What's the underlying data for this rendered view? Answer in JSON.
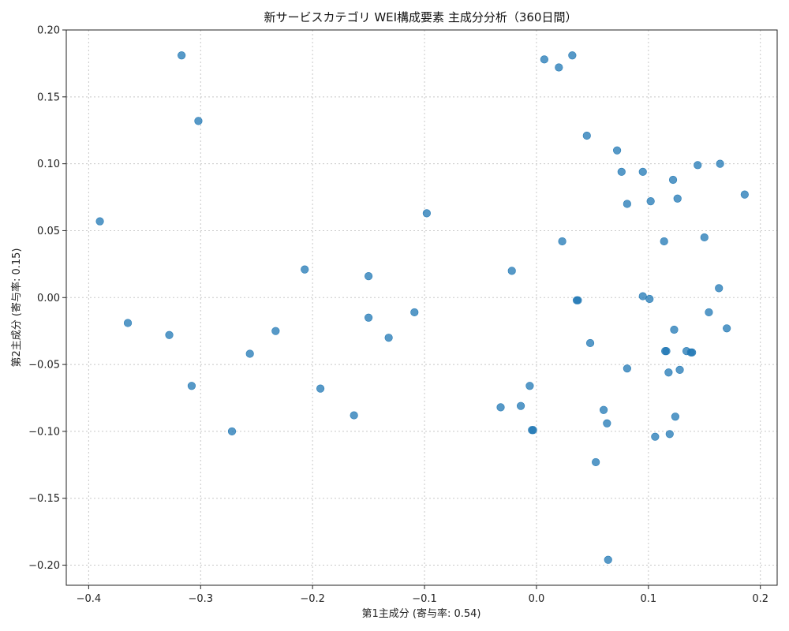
{
  "chart_data": {
    "type": "scatter",
    "title": "新サービスカテゴリ WEI構成要素 主成分分析（360日間）",
    "xlabel": "第1主成分 (寄与率: 0.54)",
    "ylabel": "第2主成分 (寄与率: 0.15)",
    "xlim": [
      -0.42,
      0.215
    ],
    "ylim": [
      -0.215,
      0.2
    ],
    "xticks": [
      -0.4,
      -0.3,
      -0.2,
      -0.1,
      0.0,
      0.1,
      0.2
    ],
    "xtick_labels": [
      "−0.4",
      "−0.3",
      "−0.2",
      "−0.1",
      "0.0",
      "0.1",
      "0.2"
    ],
    "yticks": [
      -0.2,
      -0.15,
      -0.1,
      -0.05,
      0.0,
      0.05,
      0.1,
      0.15,
      0.2
    ],
    "ytick_labels": [
      "−0.20",
      "−0.15",
      "−0.10",
      "−0.05",
      "0.00",
      "0.05",
      "0.10",
      "0.15",
      "0.20"
    ],
    "grid": true,
    "point_color": "#1f77b4",
    "points": [
      [
        -0.39,
        0.057
      ],
      [
        -0.365,
        -0.019
      ],
      [
        -0.328,
        -0.028
      ],
      [
        -0.317,
        0.181
      ],
      [
        -0.308,
        -0.066
      ],
      [
        -0.302,
        0.132
      ],
      [
        -0.272,
        -0.1
      ],
      [
        -0.256,
        -0.042
      ],
      [
        -0.233,
        -0.025
      ],
      [
        -0.207,
        0.021
      ],
      [
        -0.193,
        -0.068
      ],
      [
        -0.163,
        -0.088
      ],
      [
        -0.15,
        0.016
      ],
      [
        -0.15,
        -0.015
      ],
      [
        -0.132,
        -0.03
      ],
      [
        -0.109,
        -0.011
      ],
      [
        -0.098,
        0.063
      ],
      [
        -0.032,
        -0.082
      ],
      [
        -0.022,
        0.02
      ],
      [
        -0.014,
        -0.081
      ],
      [
        -0.006,
        -0.066
      ],
      [
        -0.004,
        -0.099
      ],
      [
        -0.003,
        -0.099
      ],
      [
        0.007,
        0.178
      ],
      [
        0.02,
        0.172
      ],
      [
        0.023,
        0.042
      ],
      [
        0.032,
        0.181
      ],
      [
        0.036,
        -0.002
      ],
      [
        0.037,
        -0.002
      ],
      [
        0.045,
        0.121
      ],
      [
        0.048,
        -0.034
      ],
      [
        0.053,
        -0.123
      ],
      [
        0.06,
        -0.084
      ],
      [
        0.063,
        -0.094
      ],
      [
        0.064,
        -0.196
      ],
      [
        0.072,
        0.11
      ],
      [
        0.076,
        0.094
      ],
      [
        0.081,
        0.07
      ],
      [
        0.081,
        -0.053
      ],
      [
        0.095,
        0.094
      ],
      [
        0.095,
        0.001
      ],
      [
        0.101,
        -0.001
      ],
      [
        0.102,
        0.072
      ],
      [
        0.106,
        -0.104
      ],
      [
        0.114,
        0.042
      ],
      [
        0.115,
        -0.04
      ],
      [
        0.116,
        -0.04
      ],
      [
        0.118,
        -0.056
      ],
      [
        0.119,
        -0.102
      ],
      [
        0.122,
        0.088
      ],
      [
        0.123,
        -0.024
      ],
      [
        0.124,
        -0.089
      ],
      [
        0.126,
        0.074
      ],
      [
        0.128,
        -0.054
      ],
      [
        0.134,
        -0.04
      ],
      [
        0.138,
        -0.041
      ],
      [
        0.139,
        -0.041
      ],
      [
        0.144,
        0.099
      ],
      [
        0.15,
        0.045
      ],
      [
        0.154,
        -0.011
      ],
      [
        0.163,
        0.007
      ],
      [
        0.164,
        0.1
      ],
      [
        0.17,
        -0.023
      ],
      [
        0.186,
        0.077
      ]
    ]
  }
}
